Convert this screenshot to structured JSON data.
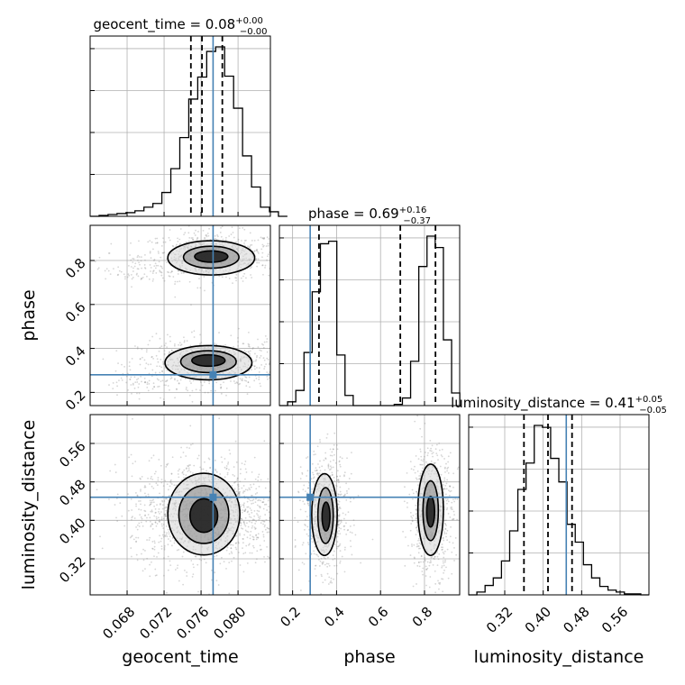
{
  "chart_data": {
    "type": "corner",
    "parameters": [
      "geocent_time",
      "phase",
      "luminosity_distance"
    ],
    "colors": {
      "truth": "#4682b4",
      "hist": "#000000",
      "grid": "#b0b0b0"
    },
    "titles": [
      {
        "name": "geocent_time",
        "value": "0.08",
        "plus": "+0.00",
        "minus": "−0.00"
      },
      {
        "name": "phase",
        "value": "0.69",
        "plus": "+0.16",
        "minus": "−0.37"
      },
      {
        "name": "luminosity_distance",
        "value": "0.41",
        "plus": "+0.05",
        "minus": "−0.05"
      }
    ],
    "ranges": {
      "geocent_time": [
        0.064,
        0.0835
      ],
      "phase": [
        0.14,
        0.96
      ],
      "luminosity_distance": [
        0.245,
        0.62
      ]
    },
    "ticks": {
      "geocent_time": [
        "0.068",
        "0.072",
        "0.076",
        "0.080"
      ],
      "phase": [
        "0.2",
        "0.4",
        "0.6",
        "0.8"
      ],
      "luminosity_distance": [
        "0.32",
        "0.40",
        "0.48",
        "0.56"
      ]
    },
    "truths": {
      "geocent_time": 0.0773,
      "phase": 0.28,
      "luminosity_distance": 0.448
    },
    "quantiles": {
      "geocent_time": [
        0.0749,
        0.0761,
        0.0783
      ],
      "phase": [
        0.32,
        0.69,
        0.85
      ],
      "luminosity_distance": [
        0.36,
        0.41,
        0.46
      ]
    },
    "hist_geocent_time": {
      "edges_start": 0.064,
      "bin_width": 0.00097,
      "counts": [
        0,
        1,
        2,
        3,
        4,
        6,
        10,
        14,
        26,
        52,
        86,
        128,
        152,
        180,
        185,
        153,
        118,
        66,
        32,
        10,
        5,
        0
      ]
    },
    "hist_phase": {
      "edges_start": 0.14,
      "bin_width": 0.0373,
      "counts": [
        0,
        3,
        12,
        42,
        90,
        128,
        130,
        40,
        8,
        0,
        0,
        0,
        0,
        0,
        1,
        6,
        35,
        110,
        134,
        125,
        52,
        10
      ]
    },
    "hist_luminosity_distance": {
      "edges_start": 0.245,
      "bin_width": 0.01705,
      "counts": [
        0,
        3,
        10,
        18,
        36,
        68,
        112,
        140,
        180,
        178,
        145,
        120,
        75,
        56,
        32,
        18,
        9,
        5,
        3,
        1,
        1,
        0
      ]
    },
    "contours": {
      "phase_vs_geocent_time": [
        {
          "cx": 0.0771,
          "cy": 0.812,
          "rx": 0.0047,
          "ry": 0.078
        },
        {
          "cx": 0.0771,
          "cy": 0.815,
          "rx": 0.003,
          "ry": 0.05
        },
        {
          "cx": 0.0771,
          "cy": 0.818,
          "rx": 0.0018,
          "ry": 0.026
        },
        {
          "cx": 0.0768,
          "cy": 0.335,
          "rx": 0.0047,
          "ry": 0.078
        },
        {
          "cx": 0.0768,
          "cy": 0.34,
          "rx": 0.003,
          "ry": 0.05
        },
        {
          "cx": 0.0768,
          "cy": 0.345,
          "rx": 0.0018,
          "ry": 0.026
        }
      ],
      "luminosity_distance_vs_geocent_time": [
        {
          "cx": 0.0763,
          "cy": 0.413,
          "rx": 0.0039,
          "ry": 0.085
        },
        {
          "cx": 0.0763,
          "cy": 0.412,
          "rx": 0.0027,
          "ry": 0.06
        },
        {
          "cx": 0.0763,
          "cy": 0.41,
          "rx": 0.0015,
          "ry": 0.035
        }
      ],
      "luminosity_distance_vs_phase": [
        {
          "cx": 0.345,
          "cy": 0.412,
          "rx": 0.058,
          "ry": 0.085
        },
        {
          "cx": 0.35,
          "cy": 0.41,
          "rx": 0.035,
          "ry": 0.058
        },
        {
          "cx": 0.352,
          "cy": 0.408,
          "rx": 0.018,
          "ry": 0.03
        },
        {
          "cx": 0.828,
          "cy": 0.422,
          "rx": 0.058,
          "ry": 0.095
        },
        {
          "cx": 0.828,
          "cy": 0.42,
          "rx": 0.035,
          "ry": 0.062
        },
        {
          "cx": 0.828,
          "cy": 0.418,
          "rx": 0.018,
          "ry": 0.032
        }
      ]
    }
  }
}
